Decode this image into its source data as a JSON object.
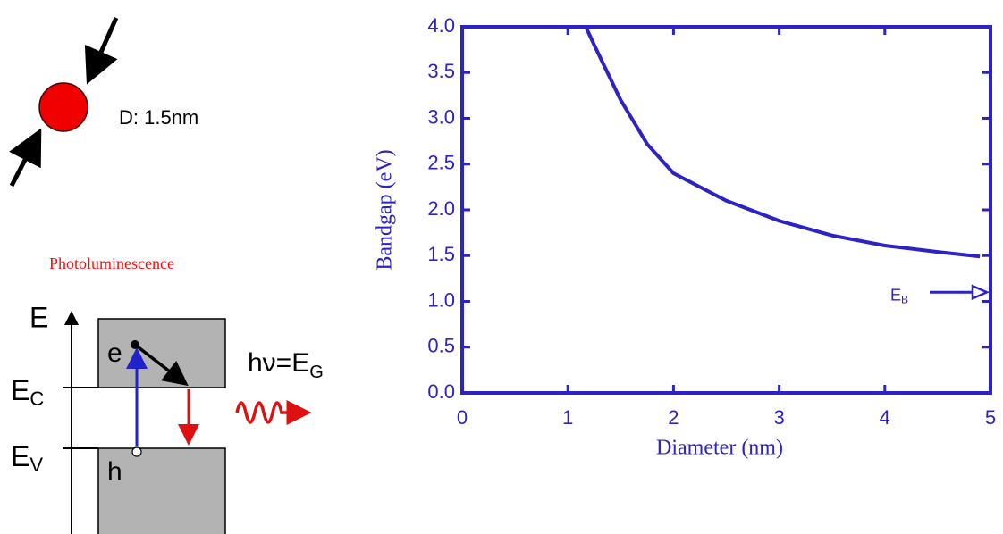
{
  "chart_data": {
    "type": "line",
    "x_label": "Diameter (nm)",
    "y_label": "Bandgap (eV)",
    "xlim": [
      0,
      5
    ],
    "xticks": [
      0,
      1,
      2,
      3,
      4,
      5
    ],
    "ylim": [
      0,
      4
    ],
    "yticks": [
      {
        "value": 0,
        "label": "0.0"
      },
      0.5,
      {
        "value": 1,
        "label": "1.0"
      },
      1.5,
      {
        "value": 2,
        "label": "2.0"
      },
      2.5,
      {
        "value": 3,
        "label": "3.0"
      },
      3.5,
      {
        "value": 4,
        "label": "4.0"
      }
    ],
    "series": [
      {
        "color": "#2d22c4",
        "x": [
          1.17,
          1.25,
          1.5,
          1.75,
          2,
          2.5,
          3,
          3.5,
          4,
          4.5,
          4.9
        ],
        "values": [
          4.0,
          3.8,
          3.2,
          2.72,
          2.4,
          2.1,
          1.88,
          1.72,
          1.61,
          1.54,
          1.49
        ]
      }
    ],
    "annotation": {
      "text": "E",
      "sub": "B",
      "value": 1.1
    }
  },
  "diagram": {
    "size_label": "D: 1.5nm",
    "title": "Photoluminescence",
    "energy": "E",
    "ec": "E",
    "ec_sub": "C",
    "ev": "E",
    "ev_sub": "V",
    "electron": "e",
    "hole": "h",
    "photon": "hν=E",
    "photon_sub": "G"
  }
}
